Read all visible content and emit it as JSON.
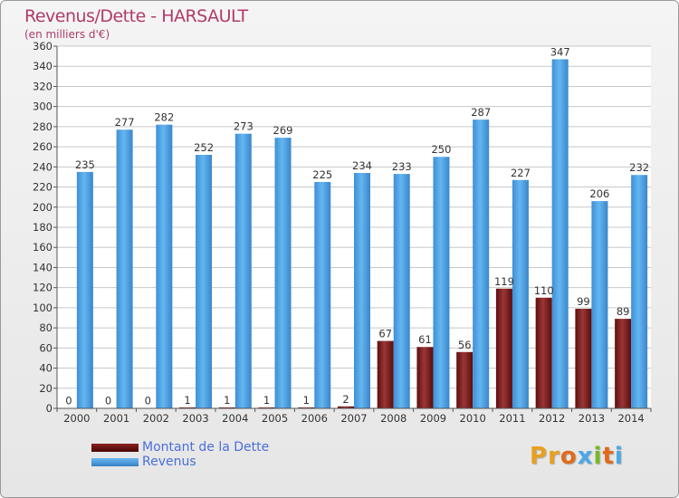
{
  "title": "Revenus/Dette - HARSAULT",
  "subtitle": "(en milliers d'€)",
  "colors": {
    "dette": "#6b1010",
    "revenus": "#4a9fe0",
    "title": "#b03a6b",
    "legend_text": "#4a6fd8"
  },
  "legend": {
    "items": [
      {
        "label": "Montant de la Dette",
        "color": "#6b1010"
      },
      {
        "label": "Revenus",
        "color": "#4a9fe0"
      }
    ]
  },
  "logo": {
    "text": "Proxiti"
  },
  "chart_data": {
    "type": "bar",
    "title": "Revenus/Dette - HARSAULT",
    "subtitle": "(en milliers d'€)",
    "categories": [
      "2000",
      "2001",
      "2002",
      "2003",
      "2004",
      "2005",
      "2006",
      "2007",
      "2008",
      "2009",
      "2010",
      "2011",
      "2012",
      "2013",
      "2014"
    ],
    "series": [
      {
        "name": "Montant de la Dette",
        "values": [
          0,
          0,
          0,
          1,
          1,
          1,
          1,
          2,
          67,
          61,
          56,
          119,
          110,
          99,
          89
        ]
      },
      {
        "name": "Revenus",
        "values": [
          235,
          277,
          282,
          252,
          273,
          269,
          225,
          234,
          233,
          250,
          287,
          227,
          347,
          206,
          232
        ]
      }
    ],
    "ylim": [
      0,
      360
    ],
    "yticks": [
      0,
      20,
      40,
      60,
      80,
      100,
      120,
      140,
      160,
      180,
      200,
      220,
      240,
      260,
      280,
      300,
      320,
      340,
      360
    ],
    "grid": true,
    "legend_position": "bottom-left"
  }
}
